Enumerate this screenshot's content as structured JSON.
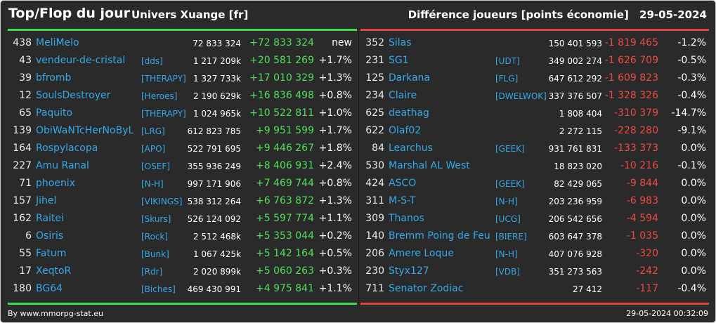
{
  "header": {
    "title": "Top/Flop du jour",
    "universe": "Univers Xuange [fr]",
    "subtitle": "Différence joueurs [points économie]",
    "date": "29-05-2024"
  },
  "top": [
    {
      "rank": "438",
      "name": "MeliMelo",
      "tag": "",
      "points": "72 833 324",
      "diff": "+72 833 324",
      "pct": "new"
    },
    {
      "rank": "43",
      "name": "vendeur-de-cristal",
      "tag": "[dds]",
      "points": "1 217 209k",
      "diff": "+20 581 269",
      "pct": "+1.7%"
    },
    {
      "rank": "39",
      "name": "bfromb",
      "tag": "[THERAPY]",
      "points": "1 327 733k",
      "diff": "+17 010 329",
      "pct": "+1.3%"
    },
    {
      "rank": "12",
      "name": "SoulsDestroyer",
      "tag": "[Heroes]",
      "points": "2 190 629k",
      "diff": "+16 836 498",
      "pct": "+0.8%"
    },
    {
      "rank": "65",
      "name": "Paquito",
      "tag": "[THERAPY]",
      "points": "1 024 965k",
      "diff": "+10 522 811",
      "pct": "+1.0%"
    },
    {
      "rank": "139",
      "name": "ObiWaNTcHerNoByL",
      "tag": "[LRG]",
      "points": "612 823 785",
      "diff": "+9 951 599",
      "pct": "+1.7%"
    },
    {
      "rank": "164",
      "name": "Rospylacopa",
      "tag": "[APO]",
      "points": "522 791 695",
      "diff": "+9 446 267",
      "pct": "+1.8%"
    },
    {
      "rank": "227",
      "name": "Amu Ranal",
      "tag": "[OSEF]",
      "points": "355 936 249",
      "diff": "+8 406 931",
      "pct": "+2.4%"
    },
    {
      "rank": "71",
      "name": "phoenix",
      "tag": "[N-H]",
      "points": "997 171 906",
      "diff": "+7 469 744",
      "pct": "+0.8%"
    },
    {
      "rank": "157",
      "name": "Jihel",
      "tag": "[VIKINGS]",
      "points": "538 312 264",
      "diff": "+6 763 872",
      "pct": "+1.3%"
    },
    {
      "rank": "162",
      "name": "Raitei",
      "tag": "[Skurs]",
      "points": "526 124 092",
      "diff": "+5 597 774",
      "pct": "+1.1%"
    },
    {
      "rank": "6",
      "name": "Osiris",
      "tag": "[Rock]",
      "points": "2 512 468k",
      "diff": "+5 353 044",
      "pct": "+0.2%"
    },
    {
      "rank": "55",
      "name": "Fatum",
      "tag": "[Bunk]",
      "points": "1 067 425k",
      "diff": "+5 142 164",
      "pct": "+0.5%"
    },
    {
      "rank": "17",
      "name": "XeqtoR",
      "tag": "[Rdr]",
      "points": "2 020 899k",
      "diff": "+5 060 263",
      "pct": "+0.3%"
    },
    {
      "rank": "180",
      "name": "BG64",
      "tag": "[Biches]",
      "points": "469 430 991",
      "diff": "+4 975 841",
      "pct": "+1.1%"
    }
  ],
  "flop": [
    {
      "rank": "352",
      "name": "Silas",
      "tag": "",
      "points": "150 401 593",
      "diff": "-1 819 465",
      "pct": "-1.2%"
    },
    {
      "rank": "231",
      "name": "SG1",
      "tag": "[UDT]",
      "points": "349 002 274",
      "diff": "-1 626 709",
      "pct": "-0.5%"
    },
    {
      "rank": "125",
      "name": "Darkana",
      "tag": "[FLG]",
      "points": "647 612 292",
      "diff": "-1 609 823",
      "pct": "-0.3%"
    },
    {
      "rank": "234",
      "name": "Claire",
      "tag": "[DWELWOK]",
      "points": "337 376 507",
      "diff": "-1 328 326",
      "pct": "-0.4%"
    },
    {
      "rank": "625",
      "name": "deathag",
      "tag": "",
      "points": "1 808 404",
      "diff": "-310 379",
      "pct": "-14.7%"
    },
    {
      "rank": "622",
      "name": "Olaf02",
      "tag": "",
      "points": "2 272 115",
      "diff": "-228 280",
      "pct": "-9.1%"
    },
    {
      "rank": "84",
      "name": "Learchus",
      "tag": "[GEEK]",
      "points": "931 761 831",
      "diff": "-133 373",
      "pct": "0.0%"
    },
    {
      "rank": "530",
      "name": "Marshal AL West",
      "tag": "",
      "points": "18 823 020",
      "diff": "-10 216",
      "pct": "-0.1%"
    },
    {
      "rank": "424",
      "name": "ASCO",
      "tag": "[GEEK]",
      "points": "82 429 065",
      "diff": "-9 844",
      "pct": "0.0%"
    },
    {
      "rank": "311",
      "name": "M-S-T",
      "tag": "[N-H]",
      "points": "203 236 959",
      "diff": "-6 983",
      "pct": "0.0%"
    },
    {
      "rank": "309",
      "name": "Thanos",
      "tag": "[UCG]",
      "points": "206 542 656",
      "diff": "-4 594",
      "pct": "0.0%"
    },
    {
      "rank": "140",
      "name": "Bremm Poing de Feu",
      "tag": "[BIERE]",
      "points": "603 647 378",
      "diff": "-1 035",
      "pct": "0.0%"
    },
    {
      "rank": "206",
      "name": "Amere Loque",
      "tag": "[N-H]",
      "points": "407 076 928",
      "diff": "-320",
      "pct": "0.0%"
    },
    {
      "rank": "230",
      "name": "Styx127",
      "tag": "[VDB]",
      "points": "351 273 563",
      "diff": "-242",
      "pct": "0.0%"
    },
    {
      "rank": "711",
      "name": "Senator Zodiac",
      "tag": "",
      "points": "27 412",
      "diff": "-117",
      "pct": "-0.4%"
    }
  ],
  "footer": {
    "credit": "By www.mmorpg-stat.eu",
    "timestamp": "29-05-2024 00:32:09"
  },
  "colors": {
    "background": "#2a2a2a",
    "link": "#36a9e8",
    "gain": "#4fe05a",
    "loss": "#ee4b47",
    "top_bar": "#3fdc4f",
    "flop_bar": "#e0453b"
  }
}
